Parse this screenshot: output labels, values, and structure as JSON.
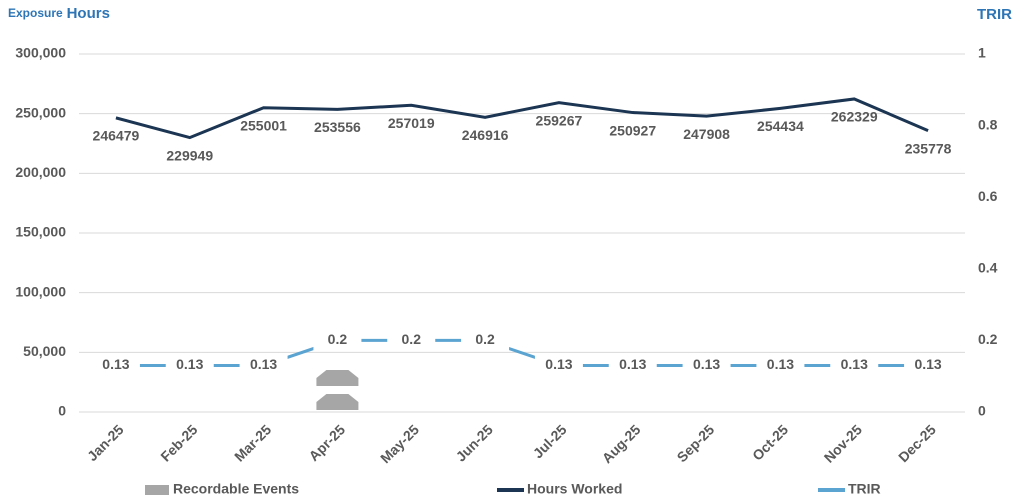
{
  "chart_data": {
    "type": "combo",
    "ylabel": [
      "Exposure",
      "Hours"
    ],
    "y2label": "TRIR",
    "categories": [
      "Jan-25",
      "Feb-25",
      "Mar-25",
      "Apr-25",
      "May-25",
      "Jun-25",
      "Jul-25",
      "Aug-25",
      "Sep-25",
      "Oct-25",
      "Nov-25",
      "Dec-25"
    ],
    "series": [
      {
        "name": "Recordable Events",
        "color": "#a6a6a6",
        "axis": "y2",
        "kind": "icons",
        "values": [
          0,
          0,
          0,
          2,
          0,
          0,
          0,
          0,
          0,
          0,
          0,
          0
        ]
      },
      {
        "name": "Hours Worked",
        "color": "#1b3552",
        "axis": "y",
        "kind": "line",
        "values": [
          246479,
          229949,
          255001,
          253556,
          257019,
          246916,
          259267,
          250927,
          247908,
          254434,
          262329,
          235778
        ]
      },
      {
        "name": "TRIR",
        "color": "#5ba3d0",
        "axis": "y2",
        "kind": "line",
        "values": [
          0.13,
          0.13,
          0.13,
          0.2,
          0.2,
          0.2,
          0.13,
          0.13,
          0.13,
          0.13,
          0.13,
          0.13
        ]
      }
    ],
    "ylim": [
      0,
      300000
    ],
    "yticks": [
      0,
      {
        "value": 50000,
        "label": "50,000"
      },
      {
        "value": 100000,
        "label": "100,000"
      },
      {
        "value": 150000,
        "label": "150,000"
      },
      {
        "value": 200000,
        "label": "200,000"
      },
      {
        "value": 250000,
        "label": "250,000"
      },
      {
        "value": 300000,
        "label": "300,000"
      }
    ],
    "y2lim": [
      0,
      1
    ],
    "y2ticks": [
      0,
      0.2,
      0.4,
      0.6,
      0.8,
      1
    ],
    "grid": true
  }
}
